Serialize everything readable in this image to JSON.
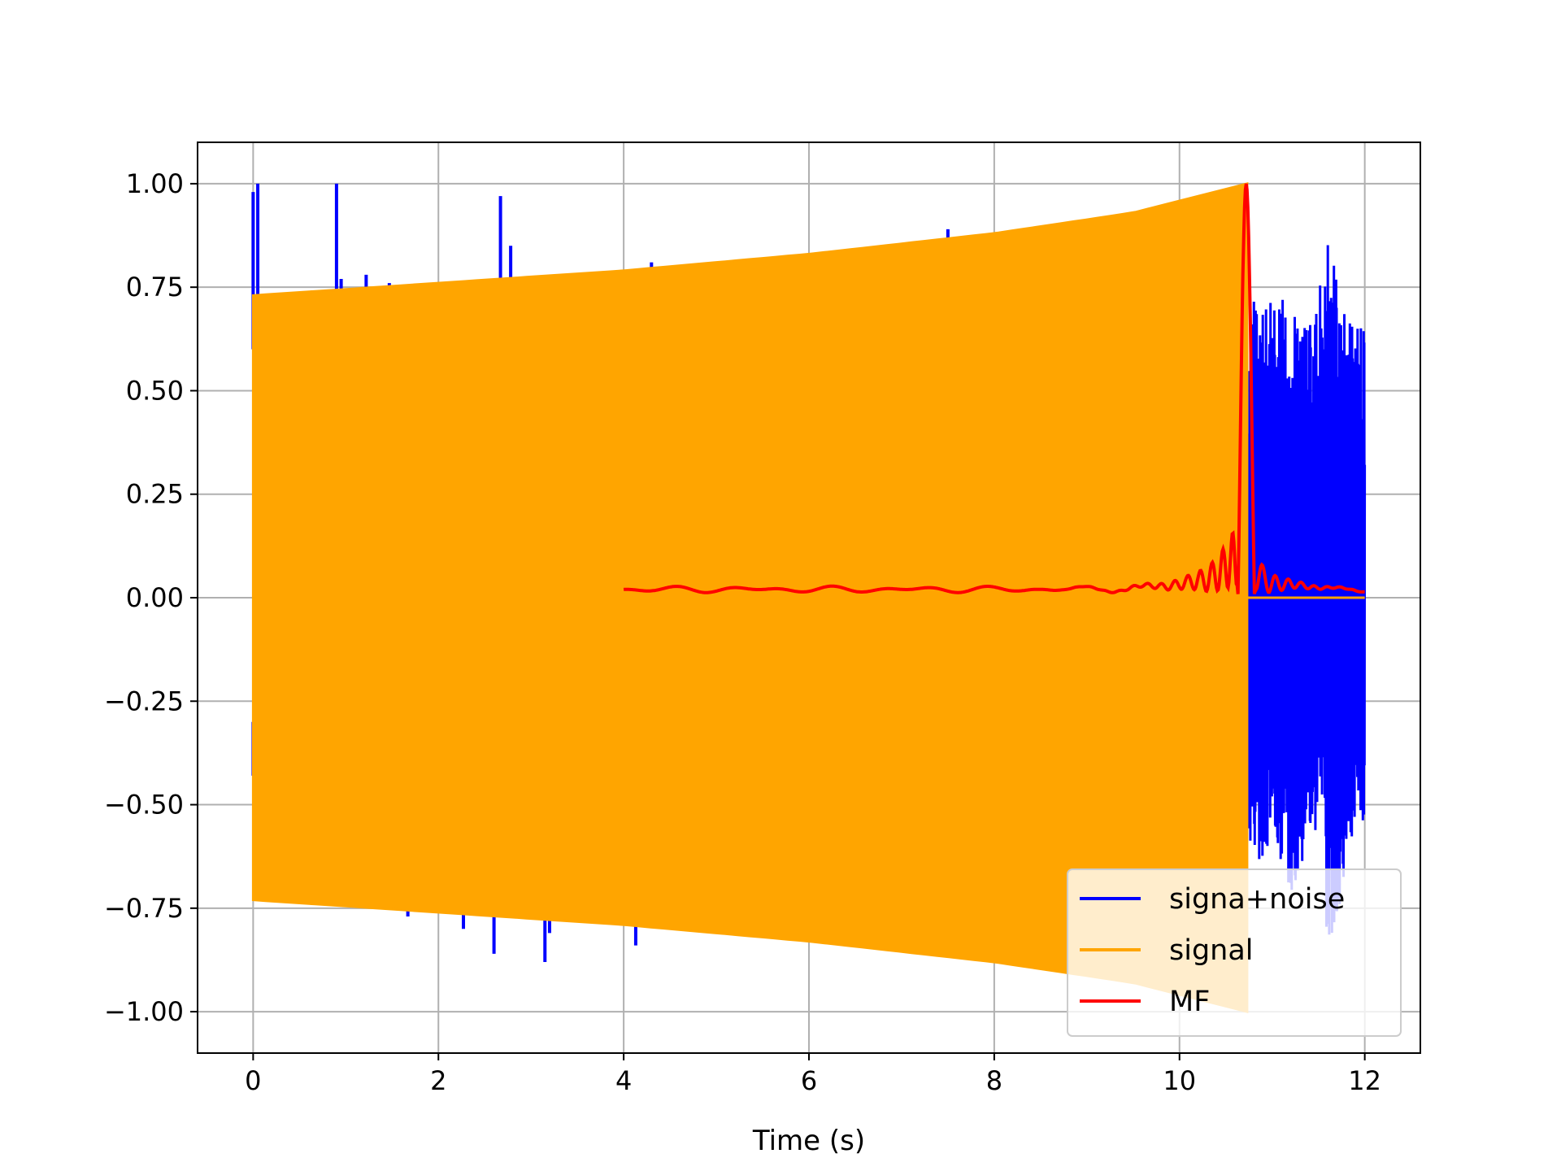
{
  "chart_data": {
    "type": "line",
    "title": "",
    "xlabel": "Time (s)",
    "ylabel": "",
    "xlim": [
      -0.6,
      12.6
    ],
    "ylim": [
      -1.1,
      1.1
    ],
    "xticks": [
      0,
      2,
      4,
      6,
      8,
      10,
      12
    ],
    "xtick_labels": [
      "0",
      "2",
      "4",
      "6",
      "8",
      "10",
      "12"
    ],
    "yticks": [
      1.0,
      0.75,
      0.5,
      0.25,
      0.0,
      -0.25,
      -0.5,
      -0.75,
      -1.0
    ],
    "ytick_labels": [
      "1.00",
      "0.75",
      "0.50",
      "0.25",
      "0.00",
      "−0.25",
      "−0.50",
      "−0.75",
      "−1.00"
    ],
    "grid": true,
    "legend_position": "lower right",
    "series": [
      {
        "name": "signa+noise",
        "color": "#0000ff",
        "spikes_up": [
          [
            0.0,
            0.98
          ],
          [
            0.05,
            1.0
          ],
          [
            0.9,
            1.0
          ],
          [
            0.95,
            0.77
          ],
          [
            1.22,
            0.78
          ],
          [
            1.47,
            0.76
          ],
          [
            2.67,
            0.97
          ],
          [
            2.78,
            0.85
          ],
          [
            4.3,
            0.81
          ],
          [
            7.5,
            0.89
          ]
        ],
        "spikes_down": [
          [
            0.0,
            -0.43
          ],
          [
            1.47,
            -0.75
          ],
          [
            1.67,
            -0.77
          ],
          [
            2.27,
            -0.8
          ],
          [
            2.6,
            -0.86
          ],
          [
            3.15,
            -0.88
          ],
          [
            3.2,
            -0.81
          ],
          [
            4.13,
            -0.84
          ]
        ],
        "noise_region": [
          10.75,
          12.0
        ],
        "noise_envelope_peaks": [
          [
            10.8,
            0.72
          ],
          [
            11.05,
            0.72
          ],
          [
            11.25,
            0.72
          ],
          [
            11.45,
            0.65
          ],
          [
            11.6,
            0.9
          ],
          [
            11.8,
            0.67
          ],
          [
            11.95,
            0.66
          ]
        ],
        "noise_envelope_troughs": [
          [
            10.85,
            -0.65
          ],
          [
            11.0,
            -0.58
          ],
          [
            11.2,
            -0.72
          ],
          [
            11.55,
            -0.55
          ],
          [
            11.6,
            -0.89
          ],
          [
            11.85,
            -0.62
          ],
          [
            11.95,
            -0.57
          ]
        ]
      },
      {
        "name": "signal",
        "color": "#ffa500",
        "x_start": 0.0,
        "x_end": 10.73,
        "envelope": [
          [
            0.0,
            0.73
          ],
          [
            2.0,
            0.76
          ],
          [
            4.0,
            0.79
          ],
          [
            6.0,
            0.83
          ],
          [
            8.0,
            0.88
          ],
          [
            9.5,
            0.93
          ],
          [
            10.73,
            1.0
          ]
        ],
        "tail_after": [
          10.73,
          12.0
        ],
        "tail_value": 0.0
      },
      {
        "name": "MF",
        "color": "#ff0000",
        "x_start": 4.0,
        "x_end": 12.0,
        "peak_x": 10.72,
        "peak_y": 1.0,
        "baseline": 0.01
      }
    ]
  }
}
